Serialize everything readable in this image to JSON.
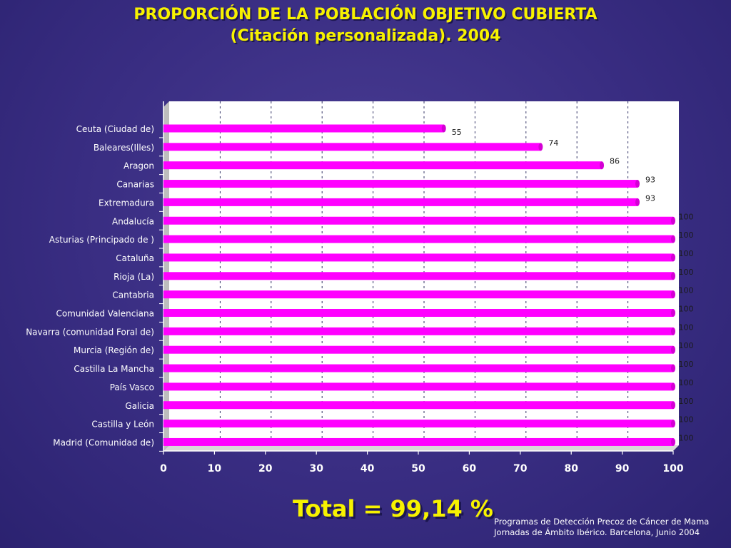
{
  "title_line1": "PROPORCIÓN DE LA POBLACIÓN OBJETIVO CUBIERTA",
  "title_line2": "(Citación personalizada). 2004",
  "total_text": "Total = 99,14 %",
  "footer_line1": "Programas de Detección Precoz de Cáncer de Mama",
  "footer_line2": "Jornadas de Ámbito Ibérico. Barcelona, Junio 2004",
  "colors": {
    "bar": "#ff00ff",
    "bar_end": "#d400d4",
    "plot_bg": "#ffffff",
    "title": "#f7f200"
  },
  "chart_data": {
    "type": "bar",
    "orientation": "horizontal",
    "categories": [
      "Ceuta (Ciudad de)",
      "Baleares(Illes)",
      "Aragon",
      "Canarias",
      "Extremadura",
      "Andalucía",
      "Asturias (Principado de )",
      "Cataluña",
      "Rioja (La)",
      "Cantabria",
      "Comunidad Valenciana",
      "Navarra (comunidad Foral de)",
      "Murcia (Región de)",
      "Castilla La Mancha",
      "País Vasco",
      "Galicia",
      "Castilla y León",
      "Madrid (Comunidad de)"
    ],
    "values": [
      55,
      74,
      86,
      93,
      93,
      100,
      100,
      100,
      100,
      100,
      100,
      100,
      100,
      100,
      100,
      100,
      100,
      100
    ],
    "xlim": [
      0,
      100
    ],
    "xticks": [
      0,
      10,
      20,
      30,
      40,
      50,
      60,
      70,
      80,
      90,
      100
    ],
    "grid": "vertical dashed",
    "data_labels": true
  }
}
